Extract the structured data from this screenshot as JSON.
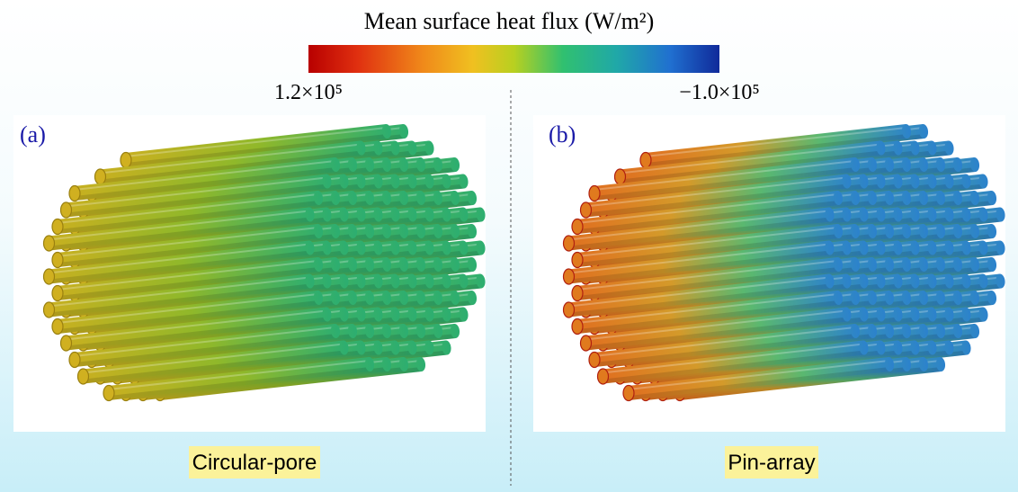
{
  "colorbar": {
    "title": "Mean surface heat flux (W/m²)",
    "max_label": "1.2×10⁵",
    "min_label": "−1.0×10⁵"
  },
  "panels": [
    {
      "label": "(a)",
      "caption": "Circular-pore"
    },
    {
      "label": "(b)",
      "caption": "Pin-array"
    }
  ]
}
